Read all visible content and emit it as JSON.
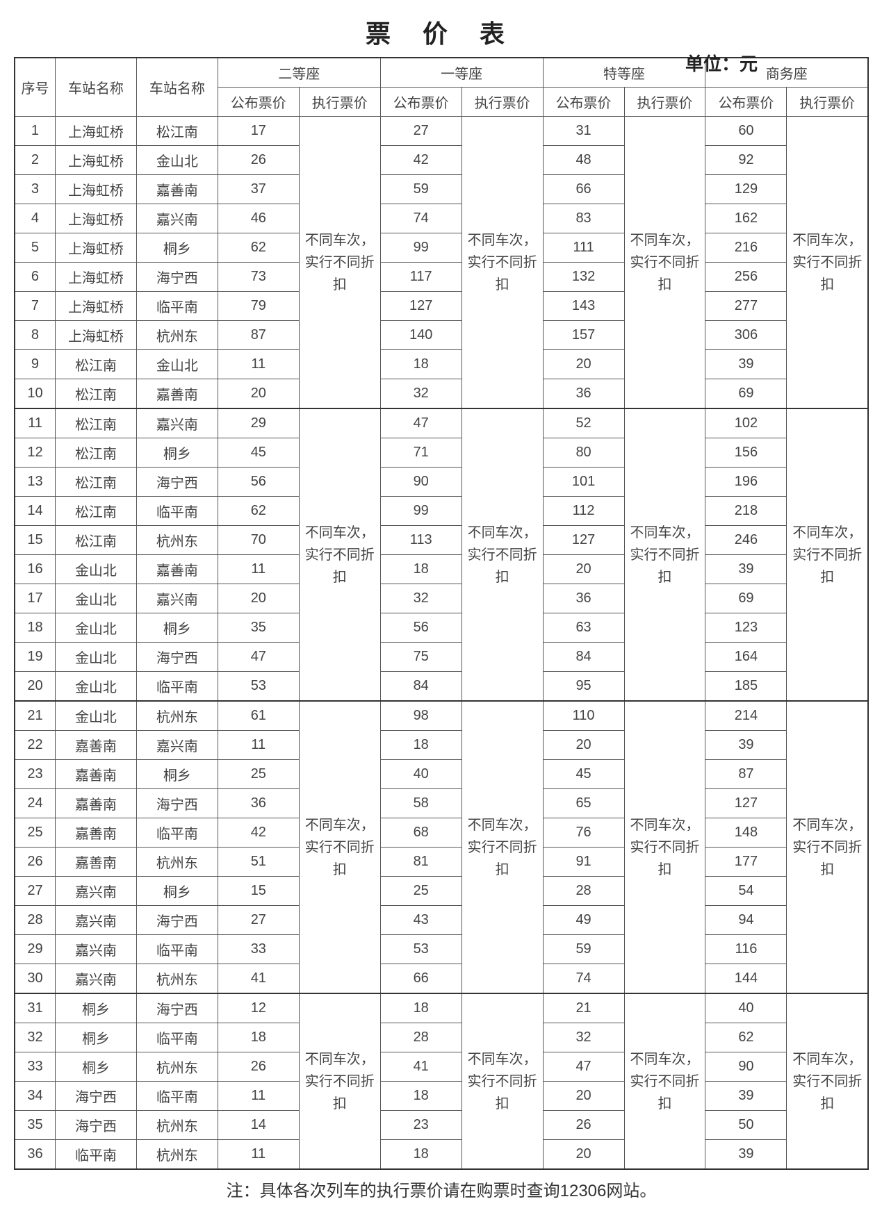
{
  "title": "票 价 表",
  "unit_label": "单位：元",
  "columns": {
    "seq": "序号",
    "station_from": "车站名称",
    "station_to": "车站名称",
    "seat_groups": [
      {
        "name": "二等座",
        "pub": "公布票价",
        "exec": "执行票价"
      },
      {
        "name": "一等座",
        "pub": "公布票价",
        "exec": "执行票价"
      },
      {
        "name": "特等座",
        "pub": "公布票价",
        "exec": "执行票价"
      },
      {
        "name": "商务座",
        "pub": "公布票价",
        "exec": "执行票价"
      }
    ]
  },
  "exec_note": "不同车次，实行不同折扣",
  "groups": [
    {
      "rows": [
        {
          "seq": 1,
          "from": "上海虹桥",
          "to": "松江南",
          "p": [
            17,
            27,
            31,
            60
          ]
        },
        {
          "seq": 2,
          "from": "上海虹桥",
          "to": "金山北",
          "p": [
            26,
            42,
            48,
            92
          ]
        },
        {
          "seq": 3,
          "from": "上海虹桥",
          "to": "嘉善南",
          "p": [
            37,
            59,
            66,
            129
          ]
        },
        {
          "seq": 4,
          "from": "上海虹桥",
          "to": "嘉兴南",
          "p": [
            46,
            74,
            83,
            162
          ]
        },
        {
          "seq": 5,
          "from": "上海虹桥",
          "to": "桐乡",
          "p": [
            62,
            99,
            111,
            216
          ]
        },
        {
          "seq": 6,
          "from": "上海虹桥",
          "to": "海宁西",
          "p": [
            73,
            117,
            132,
            256
          ]
        },
        {
          "seq": 7,
          "from": "上海虹桥",
          "to": "临平南",
          "p": [
            79,
            127,
            143,
            277
          ]
        },
        {
          "seq": 8,
          "from": "上海虹桥",
          "to": "杭州东",
          "p": [
            87,
            140,
            157,
            306
          ]
        },
        {
          "seq": 9,
          "from": "松江南",
          "to": "金山北",
          "p": [
            11,
            18,
            20,
            39
          ]
        },
        {
          "seq": 10,
          "from": "松江南",
          "to": "嘉善南",
          "p": [
            20,
            32,
            36,
            69
          ]
        }
      ]
    },
    {
      "rows": [
        {
          "seq": 11,
          "from": "松江南",
          "to": "嘉兴南",
          "p": [
            29,
            47,
            52,
            102
          ]
        },
        {
          "seq": 12,
          "from": "松江南",
          "to": "桐乡",
          "p": [
            45,
            71,
            80,
            156
          ]
        },
        {
          "seq": 13,
          "from": "松江南",
          "to": "海宁西",
          "p": [
            56,
            90,
            101,
            196
          ]
        },
        {
          "seq": 14,
          "from": "松江南",
          "to": "临平南",
          "p": [
            62,
            99,
            112,
            218
          ]
        },
        {
          "seq": 15,
          "from": "松江南",
          "to": "杭州东",
          "p": [
            70,
            113,
            127,
            246
          ]
        },
        {
          "seq": 16,
          "from": "金山北",
          "to": "嘉善南",
          "p": [
            11,
            18,
            20,
            39
          ]
        },
        {
          "seq": 17,
          "from": "金山北",
          "to": "嘉兴南",
          "p": [
            20,
            32,
            36,
            69
          ]
        },
        {
          "seq": 18,
          "from": "金山北",
          "to": "桐乡",
          "p": [
            35,
            56,
            63,
            123
          ]
        },
        {
          "seq": 19,
          "from": "金山北",
          "to": "海宁西",
          "p": [
            47,
            75,
            84,
            164
          ]
        },
        {
          "seq": 20,
          "from": "金山北",
          "to": "临平南",
          "p": [
            53,
            84,
            95,
            185
          ]
        }
      ]
    },
    {
      "rows": [
        {
          "seq": 21,
          "from": "金山北",
          "to": "杭州东",
          "p": [
            61,
            98,
            110,
            214
          ]
        },
        {
          "seq": 22,
          "from": "嘉善南",
          "to": "嘉兴南",
          "p": [
            11,
            18,
            20,
            39
          ]
        },
        {
          "seq": 23,
          "from": "嘉善南",
          "to": "桐乡",
          "p": [
            25,
            40,
            45,
            87
          ]
        },
        {
          "seq": 24,
          "from": "嘉善南",
          "to": "海宁西",
          "p": [
            36,
            58,
            65,
            127
          ]
        },
        {
          "seq": 25,
          "from": "嘉善南",
          "to": "临平南",
          "p": [
            42,
            68,
            76,
            148
          ]
        },
        {
          "seq": 26,
          "from": "嘉善南",
          "to": "杭州东",
          "p": [
            51,
            81,
            91,
            177
          ]
        },
        {
          "seq": 27,
          "from": "嘉兴南",
          "to": "桐乡",
          "p": [
            15,
            25,
            28,
            54
          ]
        },
        {
          "seq": 28,
          "from": "嘉兴南",
          "to": "海宁西",
          "p": [
            27,
            43,
            49,
            94
          ]
        },
        {
          "seq": 29,
          "from": "嘉兴南",
          "to": "临平南",
          "p": [
            33,
            53,
            59,
            116
          ]
        },
        {
          "seq": 30,
          "from": "嘉兴南",
          "to": "杭州东",
          "p": [
            41,
            66,
            74,
            144
          ]
        }
      ]
    },
    {
      "rows": [
        {
          "seq": 31,
          "from": "桐乡",
          "to": "海宁西",
          "p": [
            12,
            18,
            21,
            40
          ]
        },
        {
          "seq": 32,
          "from": "桐乡",
          "to": "临平南",
          "p": [
            18,
            28,
            32,
            62
          ]
        },
        {
          "seq": 33,
          "from": "桐乡",
          "to": "杭州东",
          "p": [
            26,
            41,
            47,
            90
          ]
        },
        {
          "seq": 34,
          "from": "海宁西",
          "to": "临平南",
          "p": [
            11,
            18,
            20,
            39
          ]
        },
        {
          "seq": 35,
          "from": "海宁西",
          "to": "杭州东",
          "p": [
            14,
            23,
            26,
            50
          ]
        },
        {
          "seq": 36,
          "from": "临平南",
          "to": "杭州东",
          "p": [
            11,
            18,
            20,
            39
          ]
        }
      ]
    }
  ],
  "footer_note": "注：具体各次列车的执行票价请在购票时查询12306网站。",
  "colors": {
    "border": "#555555",
    "outer_border": "#333333",
    "text": "#444444",
    "background": "#ffffff"
  },
  "typography": {
    "title_fontsize": 36,
    "cell_fontsize": 20,
    "footer_fontsize": 24
  }
}
